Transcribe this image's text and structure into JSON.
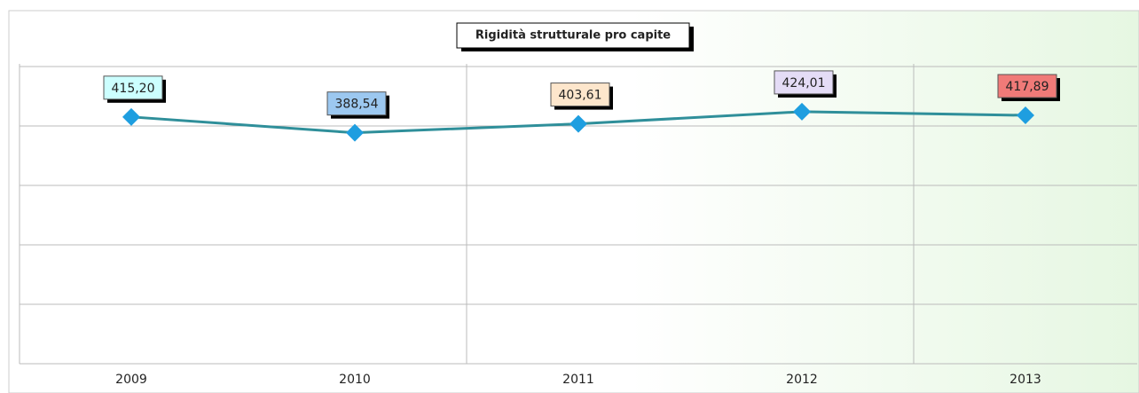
{
  "chart_data": {
    "type": "line",
    "title": "Rigidità strutturale pro capite",
    "categories": [
      "2009",
      "2010",
      "2011",
      "2012",
      "2013"
    ],
    "series": [
      {
        "color": "#2f8f9a",
        "marker_color": "#1e9ee0",
        "values": [
          415.2,
          388.54,
          403.61,
          424.01,
          417.89
        ],
        "value_labels": [
          "415,20",
          "388,54",
          "403,61",
          "424,01",
          "417,89"
        ],
        "label_colors": [
          "#ccffff",
          "#9cc8f0",
          "#fde6cc",
          "#e4dcf6",
          "#f07a78"
        ]
      }
    ],
    "ylim": [
      0,
      500
    ],
    "yticks": [
      0,
      100,
      200,
      300,
      400,
      500
    ],
    "grid": true
  }
}
